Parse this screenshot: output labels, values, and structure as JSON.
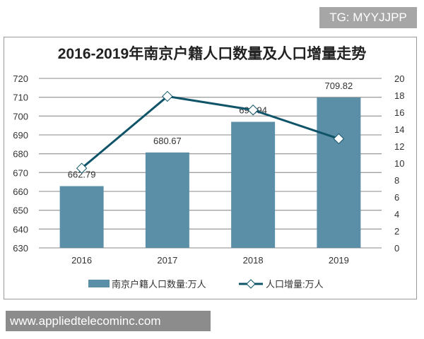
{
  "watermark_top": "TG: MYYJJPP",
  "watermark_bottom": "www.appliedtelecominc.com",
  "chart_data": {
    "type": "bar+line",
    "title": "2016-2019年南京户籍人口数量及人口增量走势",
    "categories": [
      "2016",
      "2017",
      "2018",
      "2019"
    ],
    "series": [
      {
        "name": "南京户籍人口数量:万人",
        "type": "bar",
        "axis": "left",
        "values": [
          662.79,
          680.67,
          696.94,
          709.82
        ],
        "labels": [
          "662.79",
          "680.67",
          "696.94",
          "709.82"
        ],
        "color": "#5b8fa8"
      },
      {
        "name": "人口增量:万人",
        "type": "line",
        "axis": "right",
        "values": [
          9.4,
          17.88,
          16.27,
          12.88
        ],
        "color": "#0f5468"
      }
    ],
    "ylim_left": [
      630,
      720
    ],
    "yticks_left": [
      630,
      640,
      650,
      660,
      670,
      680,
      690,
      700,
      710,
      720
    ],
    "ylim_right": [
      0,
      20
    ],
    "yticks_right": [
      0,
      2,
      4,
      6,
      8,
      10,
      12,
      14,
      16,
      18,
      20
    ],
    "grid": true,
    "legend_position": "bottom"
  }
}
